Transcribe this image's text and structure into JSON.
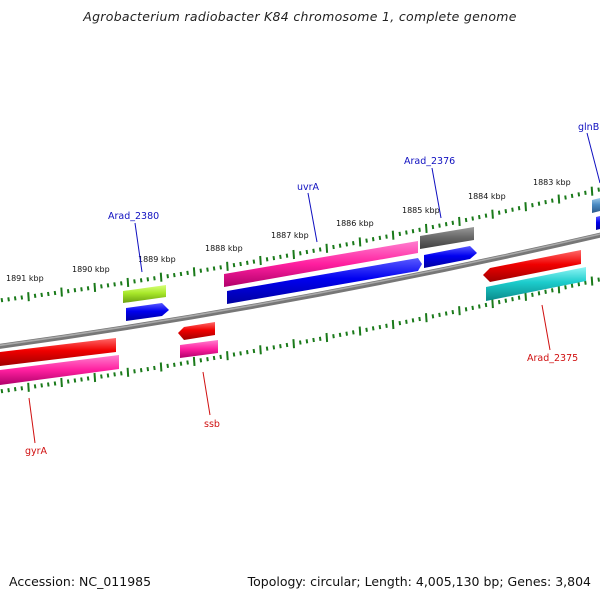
{
  "title": "Agrobacterium radiobacter K84 chromosome 1, complete genome",
  "accession": "Accession: NC_011985",
  "summary": "Topology: circular; Length: 4,005,130 bp; Genes: 3,804",
  "scale_labels": [
    "1883 kbp",
    "1884 kbp",
    "1885 kbp",
    "1886 kbp",
    "1887 kbp",
    "1888 kbp",
    "1889 kbp",
    "1890 kbp",
    "1891 kbp"
  ],
  "gene_labels": [
    "glnB",
    "Arad_2376",
    "uvrA",
    "Arad_2380",
    "Arad_2375",
    "ssb",
    "gyrA"
  ],
  "colors": {
    "forward_label": "#1010c0",
    "reverse_label": "#d01010",
    "tick": "#1a7a1a",
    "backbone": "#808080"
  }
}
